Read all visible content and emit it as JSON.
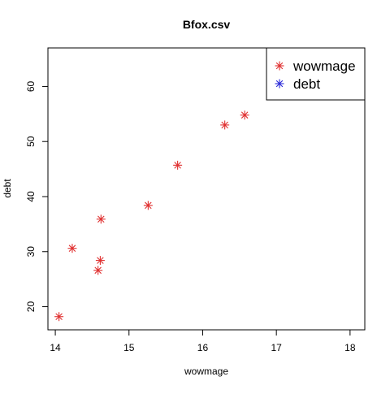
{
  "chart_data": {
    "type": "scatter",
    "title": "Bfox.csv",
    "xlabel": "wowmage",
    "ylabel": "debt",
    "xlim": [
      13.9,
      18.2
    ],
    "ylim": [
      15.8,
      67.0
    ],
    "x_ticks": [
      14,
      15,
      16,
      17,
      18
    ],
    "y_ticks": [
      20,
      30,
      40,
      50,
      60
    ],
    "marker": "asterisk",
    "legend": {
      "position": "top-right",
      "entries": [
        {
          "label": "wowmage",
          "color": "#e03030"
        },
        {
          "label": "debt",
          "color": "#2a2ad8"
        }
      ]
    },
    "series": [
      {
        "name": "wowmage",
        "color": "#e03030",
        "points": [
          {
            "x": 14.05,
            "y": 18.2
          },
          {
            "x": 14.23,
            "y": 30.6
          },
          {
            "x": 14.58,
            "y": 26.6
          },
          {
            "x": 14.61,
            "y": 28.4
          },
          {
            "x": 14.62,
            "y": 35.9
          },
          {
            "x": 15.26,
            "y": 38.4
          },
          {
            "x": 15.66,
            "y": 45.7
          },
          {
            "x": 16.3,
            "y": 53.0
          },
          {
            "x": 16.57,
            "y": 54.8
          }
        ]
      }
    ]
  }
}
